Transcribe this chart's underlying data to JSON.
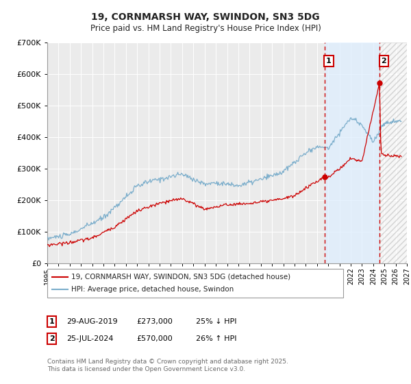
{
  "title": "19, CORNMARSH WAY, SWINDON, SN3 5DG",
  "subtitle": "Price paid vs. HM Land Registry's House Price Index (HPI)",
  "legend_label_red": "19, CORNMARSH WAY, SWINDON, SN3 5DG (detached house)",
  "legend_label_blue": "HPI: Average price, detached house, Swindon",
  "annotation1_date": "29-AUG-2019",
  "annotation1_price": "£273,000",
  "annotation1_hpi": "25% ↓ HPI",
  "annotation1_year": 2019.66,
  "annotation1_value_red": 273000,
  "annotation2_date": "25-JUL-2024",
  "annotation2_price": "£570,000",
  "annotation2_hpi": "26% ↑ HPI",
  "annotation2_year": 2024.56,
  "annotation2_value_red": 570000,
  "footer": "Contains HM Land Registry data © Crown copyright and database right 2025.\nThis data is licensed under the Open Government Licence v3.0.",
  "background_color": "#ffffff",
  "plot_bg_color": "#ebebeb",
  "grid_color": "#ffffff",
  "red_color": "#cc0000",
  "blue_color": "#7aadcb",
  "shade_color": "#ddeeff",
  "hatch_color": "#cccccc",
  "vline_color": "#cc0000",
  "ylim": [
    0,
    700000
  ],
  "xlim_start": 1995,
  "xlim_end": 2027,
  "ytick_labels": [
    "£0",
    "£100K",
    "£200K",
    "£300K",
    "£400K",
    "£500K",
    "£600K",
    "£700K"
  ],
  "ytick_values": [
    0,
    100000,
    200000,
    300000,
    400000,
    500000,
    600000,
    700000
  ]
}
